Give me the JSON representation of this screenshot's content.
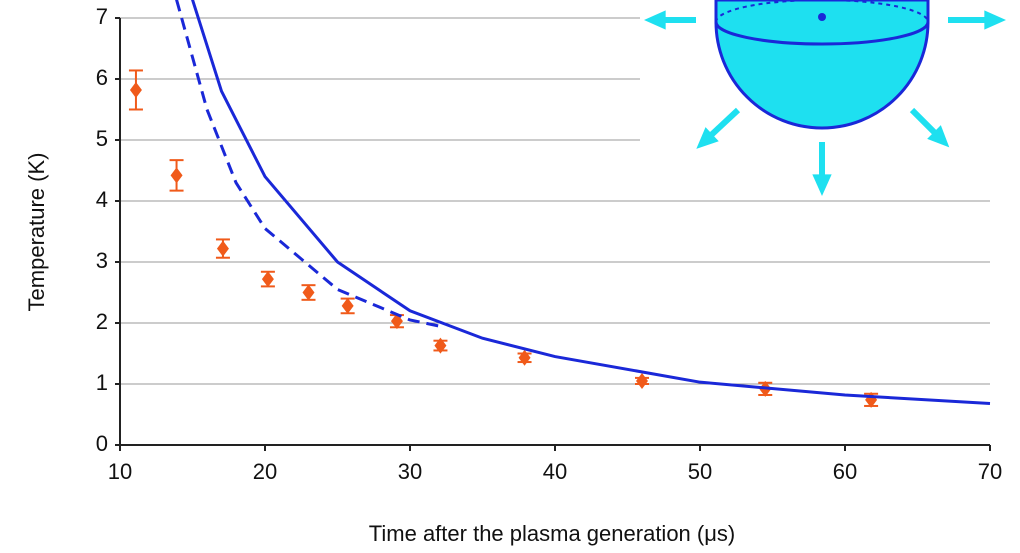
{
  "chart_data": {
    "type": "scatter",
    "xlabel": "Time after the plasma generation (μs)",
    "ylabel": "Temperature (K)",
    "xlim": [
      10,
      70
    ],
    "xticks": [
      10,
      20,
      30,
      40,
      50,
      60,
      70
    ],
    "ylim": [
      0,
      7
    ],
    "yticks": [
      0,
      1,
      2,
      3,
      4,
      5,
      6,
      7
    ],
    "grid": true,
    "series": [
      {
        "kind": "points",
        "color": "#f05a1a",
        "x": [
          11.1,
          13.9,
          17.1,
          20.2,
          23.0,
          25.7,
          29.1,
          32.1,
          37.9,
          46.0,
          54.5,
          61.8
        ],
        "values": [
          5.82,
          4.42,
          3.22,
          2.72,
          2.5,
          2.28,
          2.03,
          1.63,
          1.43,
          1.05,
          0.92,
          0.74
        ],
        "errors": [
          0.32,
          0.25,
          0.15,
          0.12,
          0.12,
          0.12,
          0.1,
          0.08,
          0.07,
          0.05,
          0.1,
          0.1
        ]
      },
      {
        "kind": "line",
        "color": "#1a28d8",
        "dashed": false,
        "x": [
          15,
          17,
          20,
          25,
          30,
          35,
          40,
          50,
          60,
          70
        ],
        "values": [
          7.3,
          5.8,
          4.4,
          3.0,
          2.2,
          1.75,
          1.45,
          1.03,
          0.82,
          0.68
        ]
      },
      {
        "kind": "line",
        "color": "#1a28d8",
        "dashed": true,
        "x": [
          13.9,
          16,
          18,
          20,
          25,
          30,
          32
        ],
        "values": [
          7.3,
          5.5,
          4.3,
          3.55,
          2.55,
          2.05,
          1.95
        ]
      }
    ]
  }
}
